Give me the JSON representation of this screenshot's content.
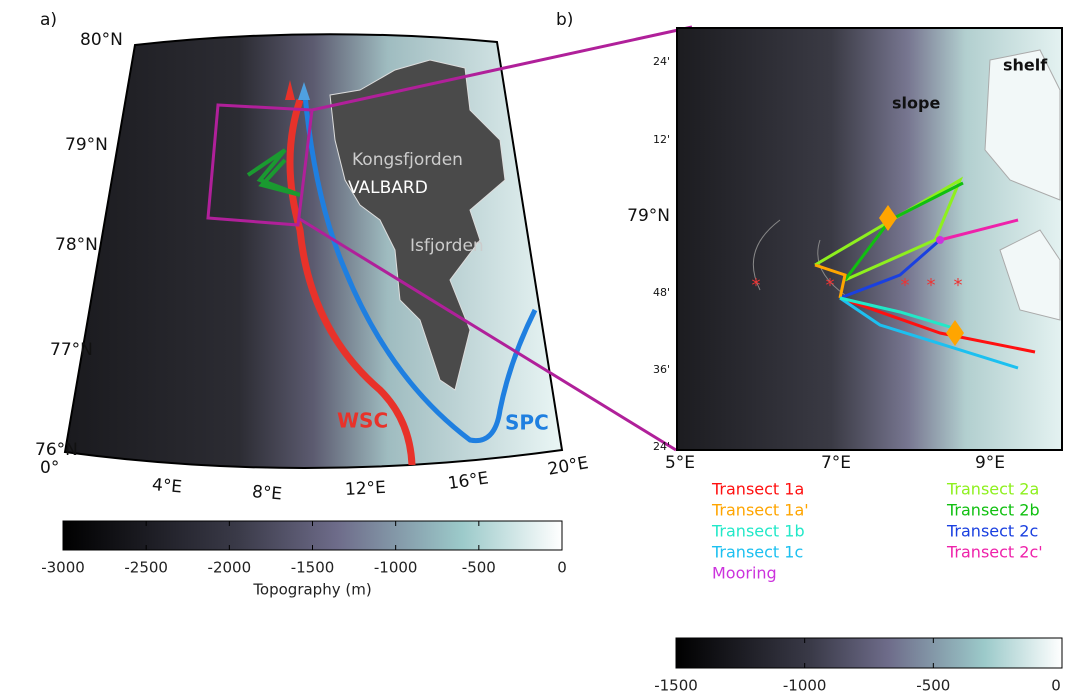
{
  "panels": [
    {
      "label": "a)",
      "lat_labels": [
        "80°N",
        "79°N",
        "78°N",
        "77°N",
        "76°N"
      ],
      "lon_labels": [
        "0°",
        "4°E",
        "8°E",
        "12°E",
        "16°E",
        "20°E"
      ],
      "place_labels": [
        "Kongsfjorden",
        "VALBARD",
        "Isfjorden"
      ],
      "current_labels": [
        {
          "name": "WSC",
          "color": "#e8322a"
        },
        {
          "name": "SPC",
          "color": "#1f7fe0"
        }
      ]
    },
    {
      "label": "b)",
      "lat_labels": [
        "24'",
        "12'",
        "79°N",
        "48'",
        "36'",
        "24'"
      ],
      "lon_labels": [
        "5°E",
        "7°E",
        "9°E"
      ],
      "region_labels": [
        "shelf",
        "slope"
      ],
      "legend": [
        {
          "name": "Transect 1a",
          "color": "#ff1010"
        },
        {
          "name": "Transect 1a'",
          "color": "#ffa500"
        },
        {
          "name": "Transect 1b",
          "color": "#22e8c8"
        },
        {
          "name": "Transect 1c",
          "color": "#1cc0f0"
        },
        {
          "name": "Mooring",
          "color": "#cc33dd"
        },
        {
          "name": "Transect 2a",
          "color": "#8ef01e"
        },
        {
          "name": "Transect 2b",
          "color": "#10c010"
        },
        {
          "name": "Transect 2c",
          "color": "#1a40e0"
        },
        {
          "name": "Transect 2c'",
          "color": "#ee22aa"
        }
      ]
    }
  ],
  "colorbars": [
    {
      "lim": [
        -3000,
        0
      ],
      "ticks": [
        -3000,
        -2500,
        -2000,
        -1500,
        -1000,
        -500,
        0
      ],
      "label": "Topography (m)"
    },
    {
      "lim": [
        -1500,
        0
      ],
      "ticks": [
        -1500,
        -1000,
        -500,
        0
      ]
    }
  ]
}
